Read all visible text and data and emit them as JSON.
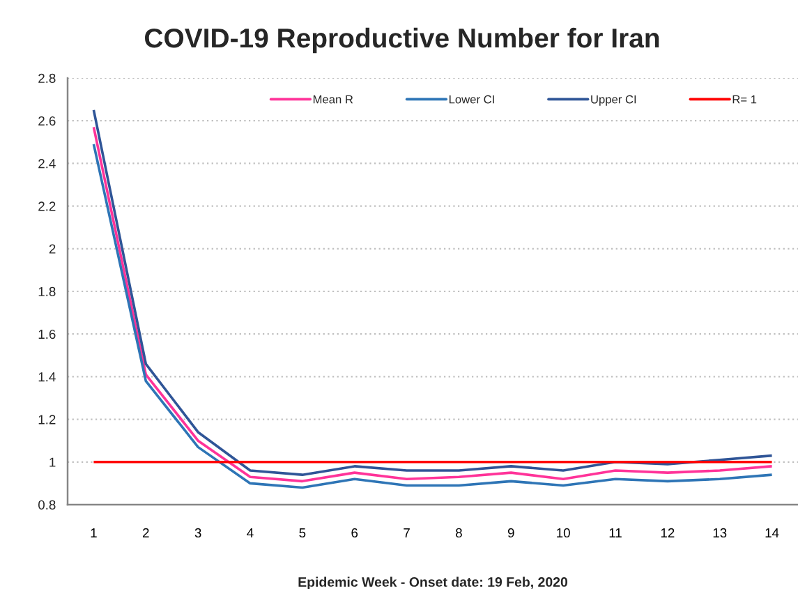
{
  "chart_data": {
    "type": "line",
    "title": "COVID-19 Reproductive Number for Iran",
    "xlabel": "Epidemic Week - Onset date: 19 Feb, 2020",
    "categories": [
      "1",
      "2",
      "3",
      "4",
      "5",
      "6",
      "7",
      "8",
      "9",
      "10",
      "11",
      "12",
      "13",
      "14"
    ],
    "series": [
      {
        "name": "Mean R",
        "color": "#ff3399",
        "values": [
          2.57,
          1.41,
          1.1,
          0.93,
          0.91,
          0.95,
          0.92,
          0.93,
          0.95,
          0.92,
          0.96,
          0.95,
          0.96,
          0.98
        ]
      },
      {
        "name": "Lower CI",
        "color": "#2e75b6",
        "values": [
          2.49,
          1.38,
          1.07,
          0.9,
          0.88,
          0.92,
          0.89,
          0.89,
          0.91,
          0.89,
          0.92,
          0.91,
          0.92,
          0.94
        ]
      },
      {
        "name": "Upper CI",
        "color": "#2f5597",
        "values": [
          2.65,
          1.46,
          1.14,
          0.96,
          0.94,
          0.98,
          0.96,
          0.96,
          0.98,
          0.96,
          1.0,
          0.99,
          1.01,
          1.03
        ]
      },
      {
        "name": "R= 1",
        "color": "#ff0000",
        "values": [
          1,
          1,
          1,
          1,
          1,
          1,
          1,
          1,
          1,
          1,
          1,
          1,
          1,
          1
        ]
      }
    ],
    "ylim": [
      0.8,
      2.8
    ],
    "yticks": [
      0.8,
      1,
      1.2,
      1.4,
      1.6,
      1.8,
      2,
      2.2,
      2.4,
      2.6,
      2.8
    ],
    "grid": "y",
    "legend": "top right",
    "line_style": "solid"
  }
}
